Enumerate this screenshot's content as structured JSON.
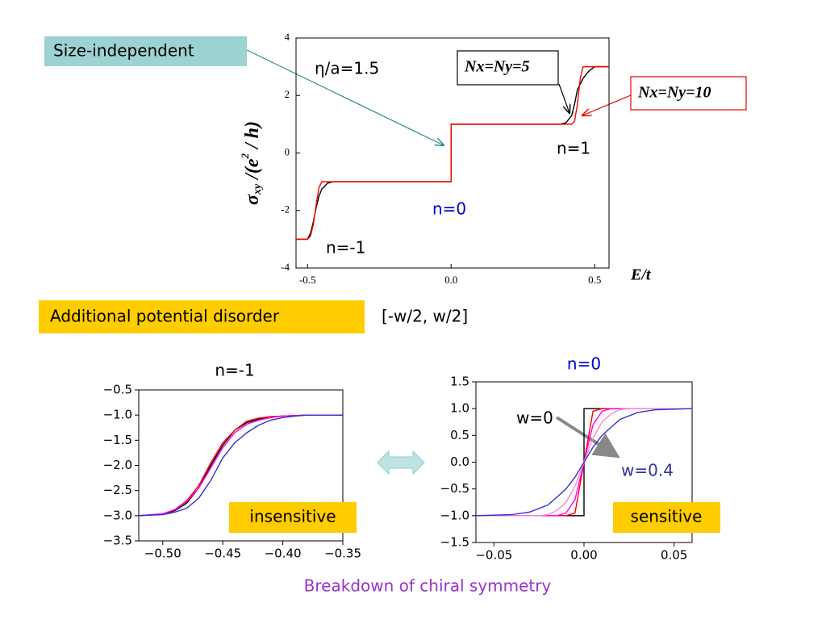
{
  "chart_data": [
    {
      "type": "line",
      "x_label": "E/t",
      "y_label": {
        "symbol": "σ",
        "sub": "xy",
        "rest": " /(e",
        "sup": "2",
        "end": " / h)"
      },
      "xlim": [
        -0.54,
        0.55
      ],
      "xticks": [
        -0.5,
        {
          "value": 0,
          "label": "0.0"
        },
        0.5
      ],
      "ylim": [
        -4,
        4
      ],
      "yticks": [
        -4,
        -2,
        0,
        2,
        4
      ],
      "annotations": [
        "Size-independent",
        "η/a=1.5",
        "n=1",
        "n=0",
        "n=-1"
      ],
      "series": [
        {
          "name": "Nx=Ny=5",
          "color": "#000000",
          "x": [
            -0.54,
            -0.5,
            -0.49,
            -0.48,
            -0.47,
            -0.46,
            -0.45,
            -0.43,
            -0.41,
            -0.4,
            0,
            0,
            0.38,
            0.4,
            0.42,
            0.43,
            0.44,
            0.46,
            0.48,
            0.5,
            0.55
          ],
          "values": [
            -3,
            -3,
            -2.8,
            -2.4,
            -1.9,
            -1.5,
            -1.25,
            -1.05,
            -1,
            -1,
            -1,
            1,
            1,
            1.05,
            1.3,
            1.7,
            2.2,
            2.6,
            2.85,
            3,
            3
          ]
        },
        {
          "name": "Nx=Ny=10",
          "color": "#ff0000",
          "x": [
            -0.54,
            -0.5,
            -0.49,
            -0.48,
            -0.47,
            -0.46,
            -0.45,
            -0.44,
            0,
            0,
            0.42,
            0.43,
            0.44,
            0.45,
            0.46,
            0.55
          ],
          "values": [
            -3,
            -3,
            -2.9,
            -2.5,
            -1.8,
            -1.2,
            -1,
            -1,
            -1,
            1,
            1,
            1.1,
            1.7,
            2.6,
            3,
            3
          ]
        }
      ]
    },
    {
      "type": "line",
      "title": "n=-1",
      "xlim": [
        -0.52,
        -0.35
      ],
      "xticks": [
        {
          "value": -0.5,
          "label": "−0.50"
        },
        {
          "value": -0.45,
          "label": "−0.45"
        },
        {
          "value": -0.4,
          "label": "−0.40"
        },
        {
          "value": -0.35,
          "label": "−0.35"
        }
      ],
      "ylim": [
        -3.5,
        -0.5
      ],
      "yticks": [
        {
          "value": -0.5,
          "label": "−0.5"
        },
        {
          "value": -1,
          "label": "−1.0"
        },
        {
          "value": -1.5,
          "label": "−1.5"
        },
        {
          "value": -2,
          "label": "−2.0"
        },
        {
          "value": -2.5,
          "label": "−2.5"
        },
        {
          "value": -3,
          "label": "−3.0"
        },
        {
          "value": -3.5,
          "label": "−3.5"
        }
      ],
      "annotations": [
        "insensitive"
      ],
      "series": [
        {
          "color": "#000000",
          "x": [
            -0.52,
            -0.5,
            -0.49,
            -0.48,
            -0.47,
            -0.46,
            -0.45,
            -0.44,
            -0.43,
            -0.42,
            -0.41,
            -0.4,
            -0.39,
            -0.38,
            -0.35
          ],
          "values": [
            -3,
            -2.97,
            -2.9,
            -2.75,
            -2.45,
            -2.0,
            -1.6,
            -1.3,
            -1.15,
            -1.08,
            -1.03,
            -1.02,
            -1.01,
            -1.0,
            -1.0
          ]
        },
        {
          "color": "#ff0000",
          "x": [
            -0.52,
            -0.5,
            -0.49,
            -0.48,
            -0.47,
            -0.46,
            -0.45,
            -0.44,
            -0.43,
            -0.42,
            -0.41,
            -0.4,
            -0.39,
            -0.38,
            -0.35
          ],
          "values": [
            -3,
            -2.97,
            -2.88,
            -2.7,
            -2.4,
            -1.95,
            -1.55,
            -1.3,
            -1.12,
            -1.06,
            -1.03,
            -1.02,
            -1.01,
            -1.0,
            -1.0
          ]
        },
        {
          "color": "#ff00ff",
          "x": [
            -0.52,
            -0.5,
            -0.49,
            -0.48,
            -0.47,
            -0.46,
            -0.45,
            -0.44,
            -0.43,
            -0.42,
            -0.41,
            -0.4,
            -0.39,
            -0.38,
            -0.35
          ],
          "values": [
            -3,
            -2.96,
            -2.88,
            -2.72,
            -2.45,
            -2.05,
            -1.65,
            -1.35,
            -1.18,
            -1.1,
            -1.05,
            -1.02,
            -1.01,
            -1.0,
            -1.0
          ]
        },
        {
          "color": "#3333cc",
          "x": [
            -0.52,
            -0.5,
            -0.49,
            -0.48,
            -0.47,
            -0.46,
            -0.45,
            -0.44,
            -0.43,
            -0.42,
            -0.41,
            -0.4,
            -0.39,
            -0.38,
            -0.35
          ],
          "values": [
            -3,
            -2.98,
            -2.93,
            -2.85,
            -2.65,
            -2.3,
            -1.85,
            -1.55,
            -1.35,
            -1.2,
            -1.1,
            -1.05,
            -1.02,
            -1.0,
            -1.0
          ]
        }
      ]
    },
    {
      "type": "line",
      "title": "n=0",
      "xlim": [
        -0.06,
        0.06
      ],
      "xticks": [
        {
          "value": -0.05,
          "label": "−0.05"
        },
        {
          "value": 0,
          "label": "0.00"
        },
        0.05
      ],
      "ylim": [
        -1.5,
        1.5
      ],
      "yticks": [
        {
          "value": -1.5,
          "label": "−1.5"
        },
        {
          "value": -1,
          "label": "−1.0"
        },
        {
          "value": -0.5,
          "label": "−0.5"
        },
        {
          "value": 0,
          "label": "0.0"
        },
        0.5,
        {
          "value": 1,
          "label": "1.0"
        },
        1.5
      ],
      "annotations": [
        "w=0",
        "w=0.4",
        "sensitive"
      ],
      "series": [
        {
          "color": "#000000",
          "x": [
            -0.06,
            0,
            0,
            0.06
          ],
          "values": [
            -1,
            -1,
            1,
            1
          ]
        },
        {
          "color": "#ff0000",
          "x": [
            -0.06,
            -0.01,
            -0.005,
            0,
            0.005,
            0.01,
            0.06
          ],
          "values": [
            -1,
            -1,
            -0.95,
            0,
            0.95,
            1,
            1
          ]
        },
        {
          "color": "#ff00ff",
          "x": [
            -0.06,
            -0.015,
            -0.01,
            -0.005,
            0,
            0.005,
            0.01,
            0.015,
            0.06
          ],
          "values": [
            -1,
            -1,
            -0.95,
            -0.7,
            0,
            0.7,
            0.95,
            1,
            1
          ]
        },
        {
          "color": "#ff88cc",
          "x": [
            -0.06,
            -0.025,
            -0.02,
            -0.015,
            -0.01,
            -0.005,
            0,
            0.005,
            0.01,
            0.015,
            0.02,
            0.025,
            0.06
          ],
          "values": [
            -1,
            -1,
            -0.98,
            -0.9,
            -0.75,
            -0.45,
            0,
            0.45,
            0.75,
            0.9,
            0.98,
            1,
            1
          ]
        },
        {
          "color": "#3333cc",
          "x": [
            -0.06,
            -0.04,
            -0.03,
            -0.02,
            -0.015,
            -0.01,
            -0.005,
            0,
            0.005,
            0.01,
            0.015,
            0.02,
            0.03,
            0.04,
            0.06
          ],
          "values": [
            -1,
            -0.98,
            -0.93,
            -0.8,
            -0.65,
            -0.5,
            -0.28,
            0,
            0.28,
            0.5,
            0.65,
            0.8,
            0.93,
            0.98,
            1
          ]
        }
      ]
    }
  ],
  "texts": {
    "disorder": "Additional potential disorder",
    "range": "[-w/2, w/2]",
    "footer": "Breakdown of chiral symmetry"
  }
}
